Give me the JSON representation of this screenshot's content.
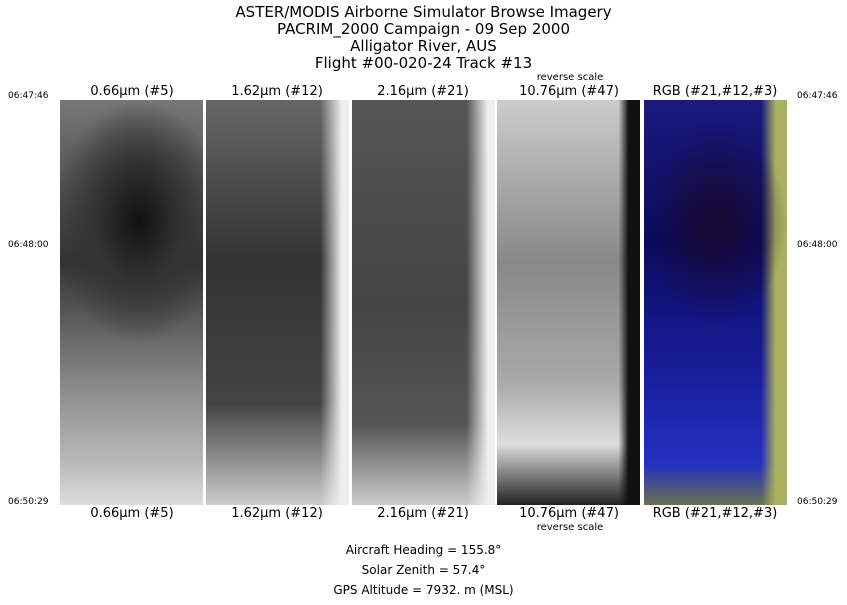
{
  "title_lines": [
    "ASTER/MODIS Airborne Simulator Browse Imagery",
    "PACRIM_2000 Campaign - 09 Sep 2000",
    "Alligator River, AUS",
    "Flight #00-020-24 Track #13"
  ],
  "panels": [
    {
      "label": "0.66µm (#5)",
      "note": ""
    },
    {
      "label": "1.62µm (#12)",
      "note": ""
    },
    {
      "label": "2.16µm (#21)",
      "note": ""
    },
    {
      "label": "10.76µm (#47)",
      "note": "reverse scale"
    },
    {
      "label": "RGB (#21,#12,#3)",
      "note": ""
    }
  ],
  "times": {
    "start": "06:47:46",
    "mid": "06:48:00",
    "end": "06:50:29"
  },
  "info": {
    "heading": "Aircraft Heading =  155.8°",
    "zenith": "Solar Zenith =   57.4°",
    "altitude": "GPS Altitude =   7932. m (MSL)"
  }
}
